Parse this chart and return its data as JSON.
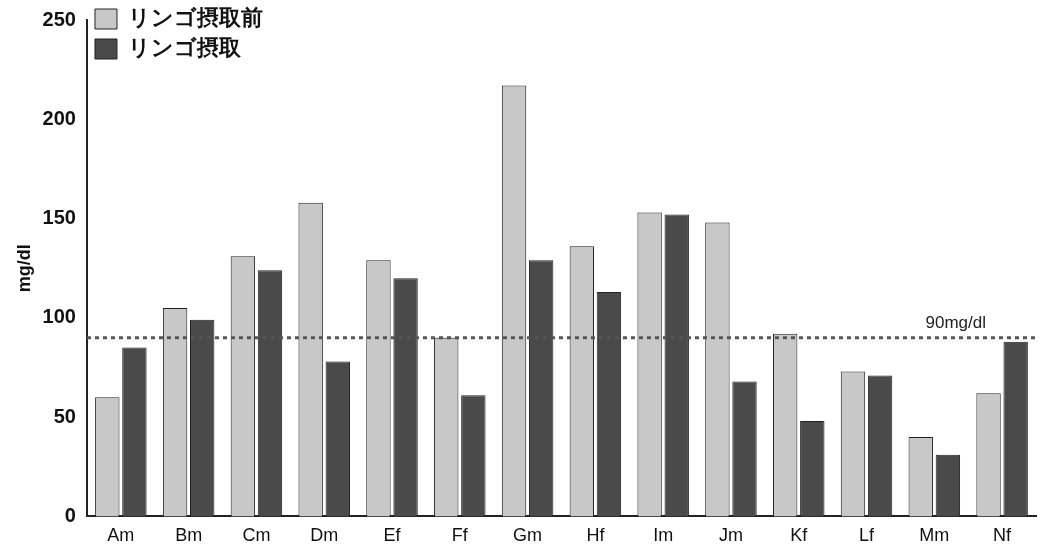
{
  "chart_data": {
    "type": "bar",
    "ylabel": "mg/dl",
    "categories": [
      "Am",
      "Bm",
      "Cm",
      "Dm",
      "Ef",
      "Ff",
      "Gm",
      "Hf",
      "Im",
      "Jm",
      "Kf",
      "Lf",
      "Mm",
      "Nf"
    ],
    "series": [
      {
        "name": "リンゴ摂取前",
        "color": "#c8c8c8",
        "values": [
          60,
          105,
          131,
          158,
          129,
          90,
          217,
          136,
          153,
          148,
          92,
          73,
          40,
          62
        ]
      },
      {
        "name": "リンゴ摂取",
        "color": "#4a4a4a",
        "values": [
          85,
          99,
          124,
          78,
          120,
          61,
          129,
          113,
          152,
          68,
          48,
          71,
          31,
          88
        ]
      }
    ],
    "ylim": [
      0,
      250
    ],
    "yticks": [
      0,
      50,
      100,
      150,
      200,
      250
    ],
    "grid": false,
    "legend": "top left",
    "ref_lines": [
      {
        "axis": "y",
        "value": 90,
        "label": "90mg/dl",
        "color": "#555555",
        "line_style": "dotted"
      }
    ]
  }
}
